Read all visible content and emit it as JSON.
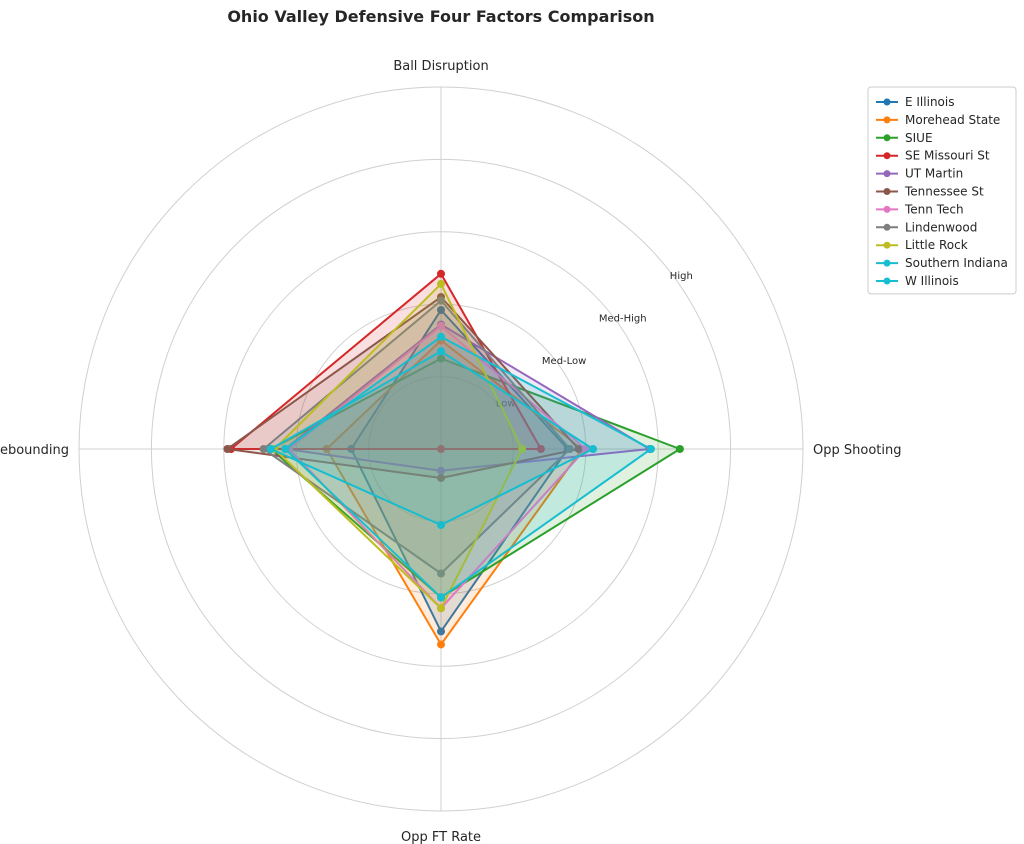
{
  "chart_data": {
    "type": "radar",
    "title": "Ohio Valley Defensive Four Factors Comparison",
    "axes": [
      "Ball Disruption",
      "Opp Shooting",
      "Opp FT Rate",
      "Def Rebounding"
    ],
    "ring_labels": [
      "Low",
      "Med-Low",
      "Med-High",
      "High"
    ],
    "ring_values": [
      1,
      2,
      3,
      4
    ],
    "range": [
      0,
      5
    ],
    "grid": true,
    "legend_position": "top-right",
    "series": [
      {
        "name": "E Illinois",
        "color": "#1f77b4",
        "values": [
          1.92,
          1.75,
          2.52,
          1.24
        ]
      },
      {
        "name": "Morehead State",
        "color": "#ff7f0e",
        "values": [
          1.5,
          1.95,
          2.7,
          1.58
        ]
      },
      {
        "name": "SIUE",
        "color": "#2ca02c",
        "values": [
          1.25,
          3.3,
          2.05,
          2.35
        ]
      },
      {
        "name": "SE Missouri St",
        "color": "#d62728",
        "values": [
          2.42,
          1.38,
          0.0,
          2.9
        ]
      },
      {
        "name": "UT Martin",
        "color": "#9467bd",
        "values": [
          1.72,
          2.88,
          0.3,
          2.15
        ]
      },
      {
        "name": "Tennessee St",
        "color": "#8c564b",
        "values": [
          2.1,
          1.9,
          0.4,
          2.95
        ]
      },
      {
        "name": "Tenn Tech",
        "color": "#e377c2",
        "values": [
          1.7,
          2.0,
          2.2,
          2.1
        ]
      },
      {
        "name": "Lindenwood",
        "color": "#7f7f7f",
        "values": [
          2.05,
          1.78,
          1.72,
          2.45
        ]
      },
      {
        "name": "Little Rock",
        "color": "#bcbd22",
        "values": [
          2.28,
          1.12,
          2.2,
          2.3
        ]
      },
      {
        "name": "Southern Indiana",
        "color": "#17becf",
        "values": [
          1.35,
          2.1,
          1.05,
          2.35
        ]
      },
      {
        "name": "W Illinois",
        "color": "#17becf",
        "values": [
          1.55,
          2.9,
          2.05,
          2.15
        ]
      }
    ]
  }
}
